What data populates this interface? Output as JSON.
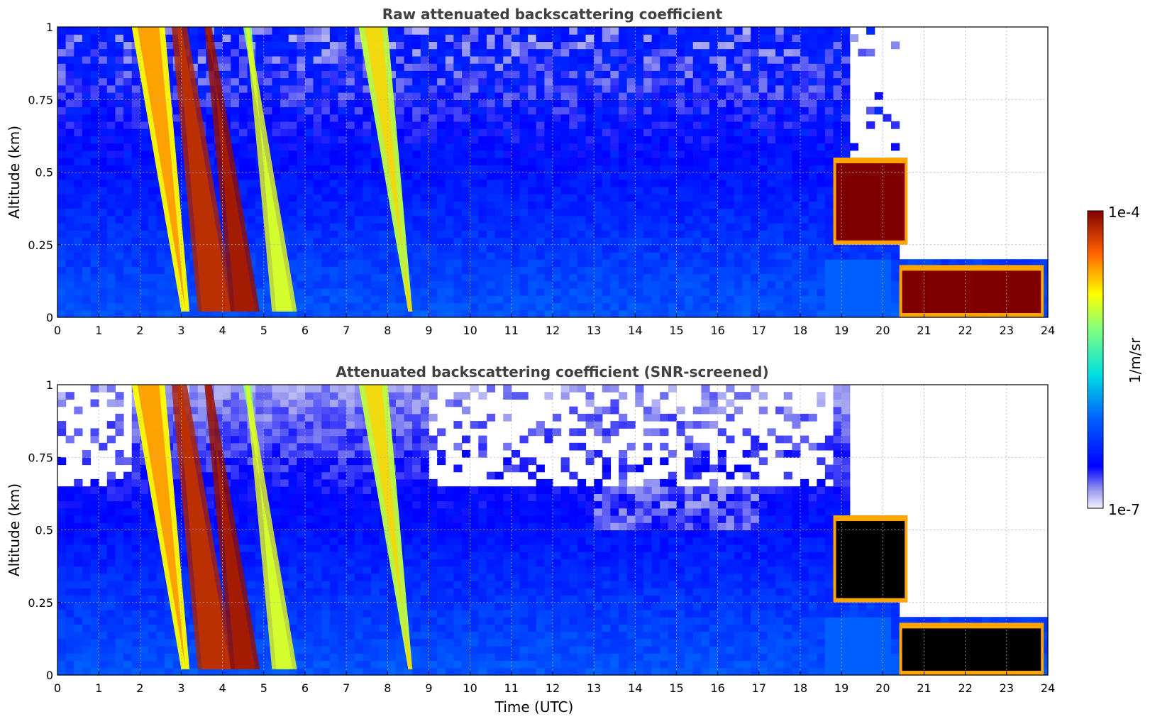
{
  "chart_data": [
    {
      "type": "heatmap",
      "title": "Raw attenuated backscattering coefficient",
      "xlabel": "",
      "ylabel": "Altitude (km)",
      "xlim": [
        0,
        24
      ],
      "ylim": [
        0,
        1
      ],
      "x_ticks": [
        "0",
        "1",
        "2",
        "3",
        "4",
        "5",
        "6",
        "7",
        "8",
        "9",
        "10",
        "11",
        "12",
        "13",
        "14",
        "15",
        "16",
        "17",
        "18",
        "19",
        "20",
        "21",
        "22",
        "23",
        "24"
      ],
      "y_ticks": [
        "0",
        "0.25",
        "0.5",
        "0.75",
        "1"
      ],
      "grid": true,
      "features": [
        {
          "t0": 1.8,
          "t1": 3.2,
          "t0_top": 1.8,
          "level": 0.72,
          "kind": "band"
        },
        {
          "t0": 3.0,
          "t1": 3.5,
          "level": 0.85,
          "kind": "band"
        },
        {
          "t0": 3.6,
          "t1": 4.3,
          "level": 0.88,
          "kind": "band"
        },
        {
          "t0": 4.5,
          "t1": 5.3,
          "level": 0.6,
          "kind": "band"
        },
        {
          "t0": 7.3,
          "t1": 8.6,
          "level": 0.66,
          "kind": "band"
        },
        {
          "t0": 18.8,
          "t1": 20.6,
          "alt0": 0.25,
          "alt1": 0.55,
          "level": 1.0,
          "kind": "cloud"
        },
        {
          "t0": 20.4,
          "t1": 23.9,
          "alt0": 0.0,
          "alt1": 0.18,
          "level": 1.0,
          "kind": "cloud"
        }
      ]
    },
    {
      "type": "heatmap",
      "title": "Attenuated backscattering coefficient (SNR-screened)",
      "xlabel": "Time (UTC)",
      "ylabel": "Altitude (km)",
      "xlim": [
        0,
        24
      ],
      "ylim": [
        0,
        1
      ],
      "x_ticks": [
        "0",
        "1",
        "2",
        "3",
        "4",
        "5",
        "6",
        "7",
        "8",
        "9",
        "10",
        "11",
        "12",
        "13",
        "14",
        "15",
        "16",
        "17",
        "18",
        "19",
        "20",
        "21",
        "22",
        "23",
        "24"
      ],
      "y_ticks": [
        "0",
        "0.25",
        "0.5",
        "0.75",
        "1"
      ],
      "grid": true,
      "features": [
        {
          "t0": 1.8,
          "t1": 3.2,
          "level": 0.72,
          "kind": "band"
        },
        {
          "t0": 3.0,
          "t1": 3.5,
          "level": 0.85,
          "kind": "band"
        },
        {
          "t0": 3.6,
          "t1": 4.3,
          "level": 0.88,
          "kind": "band"
        },
        {
          "t0": 4.5,
          "t1": 5.3,
          "level": 0.6,
          "kind": "band"
        },
        {
          "t0": 7.3,
          "t1": 8.6,
          "level": 0.66,
          "kind": "band"
        },
        {
          "t0": 18.8,
          "t1": 20.6,
          "alt0": 0.25,
          "alt1": 0.55,
          "level": 1.0,
          "kind": "cloud"
        },
        {
          "t0": 20.4,
          "t1": 23.9,
          "alt0": 0.0,
          "alt1": 0.18,
          "level": 1.0,
          "kind": "cloud"
        }
      ]
    }
  ],
  "colorbar": {
    "max_label": "1e-4",
    "min_label": "1e-7",
    "unit_label": "1/m/sr",
    "scale": "log",
    "colormap": "jet"
  }
}
